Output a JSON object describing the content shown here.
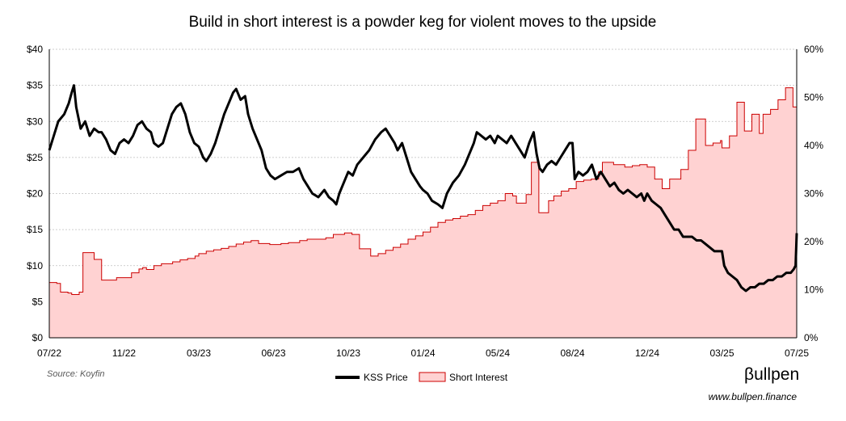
{
  "chart_data": {
    "type": "line",
    "title": "Build in short interest is a powder keg for violent moves to the upside",
    "y_left": {
      "ticks": [
        "$0",
        "$5",
        "$10",
        "$15",
        "$20",
        "$25",
        "$30",
        "$35",
        "$40"
      ],
      "range": [
        0,
        40
      ]
    },
    "y_right": {
      "ticks": [
        "0%",
        "10%",
        "20%",
        "30%",
        "40%",
        "50%",
        "60%"
      ],
      "range": [
        0,
        60
      ]
    },
    "x_ticks": [
      "07/22",
      "11/22",
      "03/23",
      "06/23",
      "10/23",
      "01/24",
      "05/24",
      "08/24",
      "12/24",
      "03/25",
      "07/25"
    ],
    "grid": true,
    "legend_position": "bottom",
    "series": [
      {
        "name": "KSS Price",
        "type": "line",
        "axis": "left",
        "color": "#000000",
        "values": [
          [
            0,
            26
          ],
          [
            0.06,
            28
          ],
          [
            0.12,
            30
          ],
          [
            0.2,
            31
          ],
          [
            0.26,
            32.5
          ],
          [
            0.3,
            34
          ],
          [
            0.33,
            35
          ],
          [
            0.36,
            32
          ],
          [
            0.42,
            29
          ],
          [
            0.48,
            30
          ],
          [
            0.54,
            28
          ],
          [
            0.6,
            29
          ],
          [
            0.66,
            28.5
          ],
          [
            0.7,
            28.5
          ],
          [
            0.76,
            27.5
          ],
          [
            0.82,
            26
          ],
          [
            0.88,
            25.5
          ],
          [
            0.94,
            27
          ],
          [
            1.0,
            27.5
          ],
          [
            1.06,
            27
          ],
          [
            1.12,
            28
          ],
          [
            1.18,
            29.5
          ],
          [
            1.24,
            30
          ],
          [
            1.3,
            29
          ],
          [
            1.36,
            28.5
          ],
          [
            1.4,
            27
          ],
          [
            1.46,
            26.5
          ],
          [
            1.52,
            27
          ],
          [
            1.58,
            29
          ],
          [
            1.64,
            31
          ],
          [
            1.7,
            32
          ],
          [
            1.76,
            32.5
          ],
          [
            1.82,
            31
          ],
          [
            1.88,
            28.5
          ],
          [
            1.94,
            27
          ],
          [
            2.0,
            26.5
          ],
          [
            2.06,
            25
          ],
          [
            2.1,
            24.5
          ],
          [
            2.16,
            25.5
          ],
          [
            2.22,
            27
          ],
          [
            2.28,
            29
          ],
          [
            2.34,
            31
          ],
          [
            2.4,
            32.5
          ],
          [
            2.46,
            34
          ],
          [
            2.5,
            34.5
          ],
          [
            2.56,
            33
          ],
          [
            2.62,
            33.5
          ],
          [
            2.66,
            31
          ],
          [
            2.72,
            29
          ],
          [
            2.78,
            27.5
          ],
          [
            2.84,
            26
          ],
          [
            2.9,
            23.5
          ],
          [
            2.96,
            22.5
          ],
          [
            3.02,
            22
          ],
          [
            3.1,
            22.5
          ],
          [
            3.18,
            23
          ],
          [
            3.26,
            23
          ],
          [
            3.34,
            23.5
          ],
          [
            3.4,
            22
          ],
          [
            3.46,
            21
          ],
          [
            3.52,
            20
          ],
          [
            3.6,
            19.5
          ],
          [
            3.68,
            20.5
          ],
          [
            3.74,
            19.5
          ],
          [
            3.8,
            19
          ],
          [
            3.84,
            18.5
          ],
          [
            3.88,
            20
          ],
          [
            3.94,
            21.5
          ],
          [
            4.0,
            23
          ],
          [
            4.06,
            22.5
          ],
          [
            4.12,
            24
          ],
          [
            4.2,
            25
          ],
          [
            4.28,
            26
          ],
          [
            4.36,
            27.5
          ],
          [
            4.44,
            28.5
          ],
          [
            4.5,
            29
          ],
          [
            4.56,
            28
          ],
          [
            4.62,
            27
          ],
          [
            4.66,
            26
          ],
          [
            4.72,
            27
          ],
          [
            4.78,
            25
          ],
          [
            4.84,
            23
          ],
          [
            4.9,
            22
          ],
          [
            4.96,
            21
          ],
          [
            5.0,
            20.5
          ],
          [
            5.06,
            20
          ],
          [
            5.12,
            19
          ],
          [
            5.2,
            18.5
          ],
          [
            5.26,
            18
          ],
          [
            5.32,
            20
          ],
          [
            5.4,
            21.5
          ],
          [
            5.48,
            22.5
          ],
          [
            5.56,
            24
          ],
          [
            5.62,
            25.5
          ],
          [
            5.68,
            27
          ],
          [
            5.72,
            28.5
          ],
          [
            5.78,
            28
          ],
          [
            5.84,
            27.5
          ],
          [
            5.9,
            28
          ],
          [
            5.96,
            27
          ],
          [
            6.0,
            28
          ],
          [
            6.06,
            27.5
          ],
          [
            6.12,
            27
          ],
          [
            6.18,
            28
          ],
          [
            6.24,
            27
          ],
          [
            6.3,
            26
          ],
          [
            6.36,
            25
          ],
          [
            6.42,
            27
          ],
          [
            6.48,
            28.5
          ],
          [
            6.52,
            25.5
          ],
          [
            6.56,
            23.5
          ],
          [
            6.6,
            23
          ],
          [
            6.66,
            24
          ],
          [
            6.72,
            24.5
          ],
          [
            6.78,
            24
          ],
          [
            6.84,
            25
          ],
          [
            6.9,
            26
          ],
          [
            6.96,
            27
          ],
          [
            7.0,
            27
          ],
          [
            7.03,
            22
          ],
          [
            7.08,
            23
          ],
          [
            7.14,
            22.5
          ],
          [
            7.2,
            23
          ],
          [
            7.26,
            24
          ],
          [
            7.32,
            22
          ],
          [
            7.38,
            23
          ],
          [
            7.44,
            22
          ],
          [
            7.5,
            21
          ],
          [
            7.56,
            21.5
          ],
          [
            7.62,
            20.5
          ],
          [
            7.68,
            20
          ],
          [
            7.74,
            20.5
          ],
          [
            7.8,
            20
          ],
          [
            7.86,
            19.5
          ],
          [
            7.92,
            20
          ],
          [
            7.96,
            19
          ],
          [
            8.0,
            20
          ],
          [
            8.06,
            19
          ],
          [
            8.12,
            18.5
          ],
          [
            8.18,
            18
          ],
          [
            8.24,
            17
          ],
          [
            8.3,
            16
          ],
          [
            8.36,
            15
          ],
          [
            8.42,
            15
          ],
          [
            8.48,
            14
          ],
          [
            8.54,
            14
          ],
          [
            8.6,
            14
          ],
          [
            8.66,
            13.5
          ],
          [
            8.72,
            13.5
          ],
          [
            8.78,
            13
          ],
          [
            8.84,
            12.5
          ],
          [
            8.9,
            12
          ],
          [
            8.96,
            12
          ],
          [
            9.0,
            12
          ],
          [
            9.03,
            10
          ],
          [
            9.08,
            9
          ],
          [
            9.14,
            8.5
          ],
          [
            9.2,
            8
          ],
          [
            9.26,
            7
          ],
          [
            9.32,
            6.5
          ],
          [
            9.38,
            7
          ],
          [
            9.44,
            7
          ],
          [
            9.5,
            7.5
          ],
          [
            9.56,
            7.5
          ],
          [
            9.62,
            8
          ],
          [
            9.68,
            8
          ],
          [
            9.74,
            8.5
          ],
          [
            9.8,
            8.5
          ],
          [
            9.86,
            9
          ],
          [
            9.92,
            9
          ],
          [
            9.96,
            9.5
          ],
          [
            9.985,
            10
          ],
          [
            10.0,
            14.5
          ]
        ]
      },
      {
        "name": "Short Interest",
        "type": "area-step",
        "axis": "right",
        "color": "#cc0000",
        "fill": "#ffd2d2",
        "values": [
          [
            0,
            11.5
          ],
          [
            0.1,
            11.3
          ],
          [
            0.15,
            9.5
          ],
          [
            0.25,
            9.3
          ],
          [
            0.3,
            9.0
          ],
          [
            0.4,
            9.5
          ],
          [
            0.45,
            17.7
          ],
          [
            0.6,
            16.3
          ],
          [
            0.7,
            12
          ],
          [
            0.9,
            12.5
          ],
          [
            1.1,
            13.5
          ],
          [
            1.2,
            14.3
          ],
          [
            1.25,
            14.6
          ],
          [
            1.3,
            14.2
          ],
          [
            1.4,
            15.0
          ],
          [
            1.5,
            15.4
          ],
          [
            1.65,
            15.8
          ],
          [
            1.75,
            16.2
          ],
          [
            1.85,
            16.5
          ],
          [
            1.95,
            17.0
          ],
          [
            2.0,
            17.5
          ],
          [
            2.1,
            18.0
          ],
          [
            2.2,
            18.3
          ],
          [
            2.3,
            18.6
          ],
          [
            2.4,
            19.0
          ],
          [
            2.5,
            19.5
          ],
          [
            2.6,
            19.9
          ],
          [
            2.7,
            20.2
          ],
          [
            2.8,
            19.6
          ],
          [
            2.95,
            19.4
          ],
          [
            3.1,
            19.6
          ],
          [
            3.2,
            19.8
          ],
          [
            3.35,
            20.2
          ],
          [
            3.45,
            20.5
          ],
          [
            3.55,
            20.5
          ],
          [
            3.7,
            20.8
          ],
          [
            3.8,
            21.5
          ],
          [
            3.95,
            21.8
          ],
          [
            4.05,
            21.5
          ],
          [
            4.15,
            18.5
          ],
          [
            4.3,
            17.0
          ],
          [
            4.4,
            17.5
          ],
          [
            4.5,
            18.2
          ],
          [
            4.6,
            18.8
          ],
          [
            4.7,
            19.5
          ],
          [
            4.8,
            20.5
          ],
          [
            4.9,
            21.2
          ],
          [
            5.0,
            22.0
          ],
          [
            5.1,
            23.0
          ],
          [
            5.2,
            24.0
          ],
          [
            5.3,
            24.5
          ],
          [
            5.4,
            24.8
          ],
          [
            5.5,
            25.3
          ],
          [
            5.6,
            25.6
          ],
          [
            5.7,
            26.5
          ],
          [
            5.8,
            27.5
          ],
          [
            5.9,
            28.0
          ],
          [
            6.0,
            28.5
          ],
          [
            6.1,
            30.0
          ],
          [
            6.2,
            29.5
          ],
          [
            6.25,
            28.0
          ],
          [
            6.38,
            29.8
          ],
          [
            6.45,
            36.5
          ],
          [
            6.55,
            26.0
          ],
          [
            6.68,
            28.5
          ],
          [
            6.75,
            29.5
          ],
          [
            6.85,
            30.5
          ],
          [
            6.95,
            31.0
          ],
          [
            7.05,
            32.5
          ],
          [
            7.15,
            32.8
          ],
          [
            7.25,
            33.0
          ],
          [
            7.35,
            34.5
          ],
          [
            7.4,
            36.5
          ],
          [
            7.55,
            36.0
          ],
          [
            7.7,
            35.5
          ],
          [
            7.8,
            35.8
          ],
          [
            7.9,
            36.0
          ],
          [
            8.0,
            35.5
          ],
          [
            8.1,
            33.0
          ],
          [
            8.2,
            31.0
          ],
          [
            8.3,
            33.0
          ],
          [
            8.45,
            35.0
          ],
          [
            8.55,
            39.0
          ],
          [
            8.65,
            45.5
          ],
          [
            8.78,
            40.0
          ],
          [
            8.88,
            40.5
          ],
          [
            8.98,
            41.0
          ],
          [
            9.0,
            39.5
          ],
          [
            9.1,
            42.0
          ],
          [
            9.2,
            49.0
          ],
          [
            9.3,
            43.0
          ],
          [
            9.4,
            46.5
          ],
          [
            9.5,
            42.5
          ],
          [
            9.55,
            46.5
          ],
          [
            9.65,
            47.5
          ],
          [
            9.75,
            49.5
          ],
          [
            9.85,
            52.0
          ],
          [
            9.95,
            48.0
          ],
          [
            10.0,
            47.5
          ]
        ]
      }
    ],
    "source": "Source: Koyfin",
    "brand": "βullpen",
    "site": "www.bullpen.finance"
  }
}
